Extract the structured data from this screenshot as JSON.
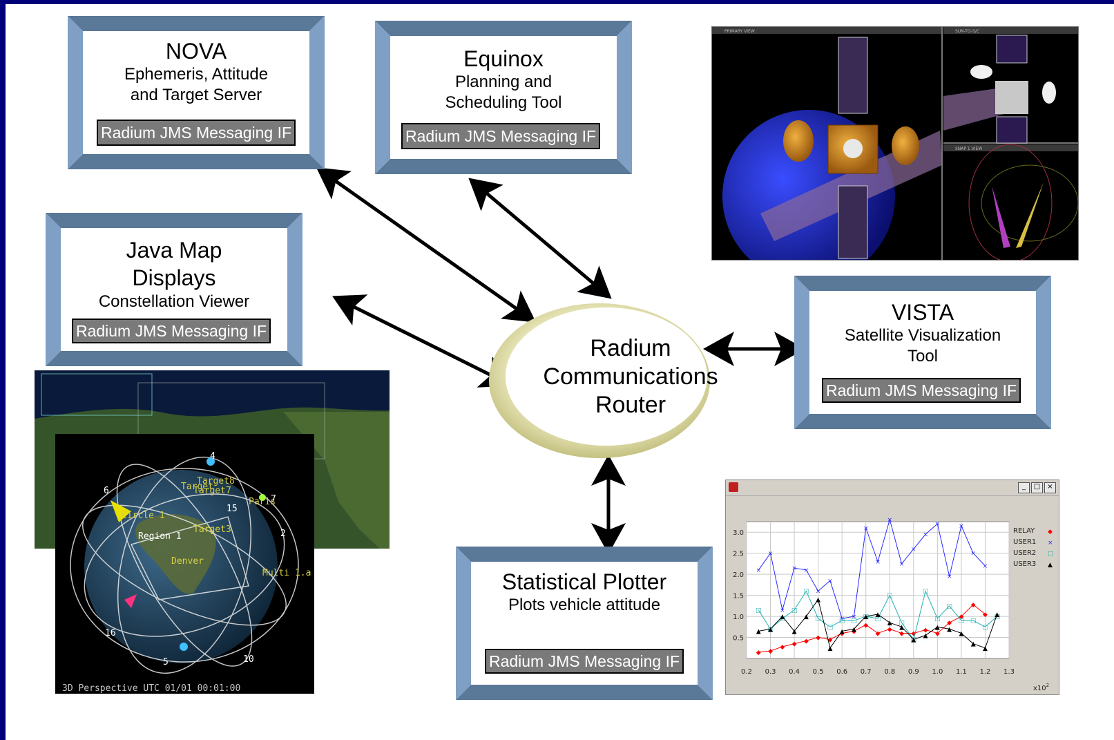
{
  "boxes": {
    "nova": {
      "title": "NOVA",
      "subtitle_lines": [
        "Ephemeris, Attitude",
        "and Target Server"
      ],
      "interface": "Radium JMS Messaging IF"
    },
    "equinox": {
      "title": "Equinox",
      "subtitle_lines": [
        "Planning and",
        "Scheduling Tool"
      ],
      "interface": "Radium JMS Messaging IF"
    },
    "java_map": {
      "title_lines": [
        "Java Map",
        "Displays"
      ],
      "subtitle": "Constellation Viewer",
      "interface": "Radium JMS Messaging IF"
    },
    "vista": {
      "title": "VISTA",
      "subtitle_lines": [
        "Satellite Visualization",
        "Tool"
      ],
      "interface": "Radium JMS Messaging IF"
    },
    "plotter": {
      "title": "Statistical Plotter",
      "subtitle": "Plots vehicle attitude",
      "interface": "Radium JMS Messaging IF"
    }
  },
  "router": {
    "lines": [
      "Radium",
      "Communications",
      "Router"
    ]
  },
  "constellation_view": {
    "labels": {
      "target8": "Target8",
      "target": "Target",
      "target7": "Target7",
      "circle": "Circle 1",
      "region": "Region 1",
      "target3": "Target3",
      "paris": "Paris",
      "denver": "Denver",
      "multi": "Multi 1.a",
      "n15": "15",
      "n4": "4",
      "n6": "6",
      "n7": "7",
      "n2": "2",
      "n16": "16",
      "n5": "5",
      "n10": "10"
    },
    "status": "3D Perspective   UTC 01/01 00:01:00"
  },
  "vista_view": {
    "panels": [
      "PRIMARY VIEW",
      "SUN-TO-S/C",
      "SNAP 1 VIEW"
    ]
  },
  "plot": {
    "window_controls": [
      "_",
      "□",
      "×"
    ],
    "x_multiplier": "x10",
    "x_multiplier_exp": "2",
    "chart_data": {
      "type": "line",
      "x_ticks": [
        "0.2",
        "0.3",
        "0.4",
        "0.5",
        "0.6",
        "0.7",
        "0.8",
        "0.9",
        "1.0",
        "1.1",
        "1.2",
        "1.3"
      ],
      "y_ticks": [
        "0.5",
        "1.0",
        "1.5",
        "2.0",
        "2.5",
        "3.0"
      ],
      "xlim": [
        0.2,
        1.3
      ],
      "ylim": [
        0.0,
        3.25
      ],
      "grid": true,
      "legend_position": "top-right",
      "series": [
        {
          "name": "RELAY",
          "marker": "◆",
          "color": "#ff0000",
          "x": [
            0.25,
            0.3,
            0.35,
            0.4,
            0.45,
            0.5,
            0.55,
            0.6,
            0.65,
            0.7,
            0.75,
            0.8,
            0.85,
            0.9,
            0.95,
            1.0,
            1.05,
            1.1,
            1.15,
            1.2
          ],
          "y": [
            0.15,
            0.18,
            0.28,
            0.35,
            0.42,
            0.5,
            0.45,
            0.6,
            0.65,
            0.8,
            0.6,
            0.7,
            0.6,
            0.6,
            0.68,
            0.6,
            0.85,
            1.0,
            1.28,
            1.05
          ]
        },
        {
          "name": "USER1",
          "marker": "×",
          "color": "#2a2aff",
          "x": [
            0.25,
            0.3,
            0.35,
            0.4,
            0.45,
            0.5,
            0.55,
            0.6,
            0.65,
            0.7,
            0.75,
            0.8,
            0.85,
            0.9,
            0.95,
            1.0,
            1.05,
            1.1,
            1.15,
            1.2
          ],
          "y": [
            2.1,
            2.5,
            1.15,
            2.15,
            2.1,
            1.6,
            1.85,
            0.95,
            1.0,
            3.1,
            2.3,
            3.3,
            2.25,
            2.6,
            2.95,
            3.2,
            1.95,
            3.15,
            2.5,
            2.2
          ]
        },
        {
          "name": "USER2",
          "marker": "□",
          "color": "#20b0b0",
          "x": [
            0.25,
            0.3,
            0.35,
            0.4,
            0.45,
            0.5,
            0.55,
            0.6,
            0.65,
            0.7,
            0.75,
            0.8,
            0.85,
            0.9,
            0.95,
            1.0,
            1.05,
            1.1,
            1.15,
            1.2,
            1.25
          ],
          "y": [
            1.15,
            0.7,
            0.95,
            1.15,
            1.6,
            0.95,
            0.75,
            0.9,
            0.9,
            1.0,
            0.95,
            1.5,
            0.85,
            0.45,
            1.6,
            0.95,
            1.25,
            0.9,
            0.9,
            0.75,
            1.0
          ]
        },
        {
          "name": "USER3",
          "marker": "▲",
          "color": "#000000",
          "x": [
            0.25,
            0.3,
            0.35,
            0.4,
            0.45,
            0.5,
            0.55,
            0.6,
            0.65,
            0.7,
            0.75,
            0.8,
            0.85,
            0.9,
            0.95,
            1.0,
            1.05,
            1.1,
            1.15,
            1.2,
            1.25
          ],
          "y": [
            0.65,
            0.7,
            1.0,
            0.65,
            1.0,
            1.4,
            0.25,
            0.65,
            0.7,
            1.0,
            1.05,
            0.85,
            0.75,
            0.45,
            0.55,
            0.75,
            0.7,
            0.6,
            0.35,
            0.25,
            1.05
          ]
        }
      ]
    }
  }
}
